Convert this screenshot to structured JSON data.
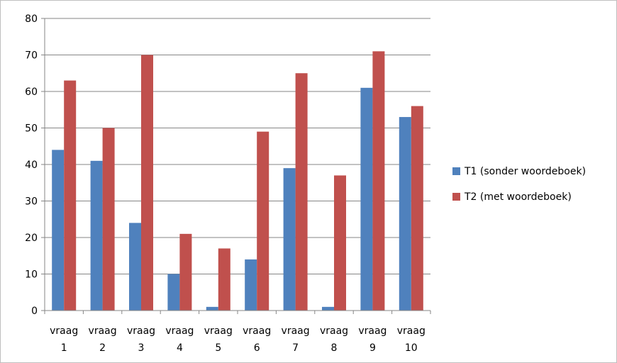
{
  "chart_data": {
    "type": "bar",
    "title": "",
    "xlabel": "",
    "ylabel": "",
    "categories": [
      [
        "vraag",
        "1"
      ],
      [
        "vraag",
        "2"
      ],
      [
        "vraag",
        "3"
      ],
      [
        "vraag",
        "4"
      ],
      [
        "vraag",
        "5"
      ],
      [
        "vraag",
        "6"
      ],
      [
        "vraag",
        "7"
      ],
      [
        "vraag",
        "8"
      ],
      [
        "vraag",
        "9"
      ],
      [
        "vraag",
        "10"
      ]
    ],
    "series": [
      {
        "name": "T1 (sonder woordeboek)",
        "color": "#4F81BD",
        "values": [
          44,
          41,
          24,
          10,
          1,
          14,
          39,
          1,
          61,
          53
        ]
      },
      {
        "name": "T2 (met woordeboek)",
        "color": "#C0504D",
        "values": [
          63,
          50,
          70,
          21,
          17,
          49,
          65,
          37,
          71,
          56
        ]
      }
    ],
    "ylim": [
      0,
      80
    ],
    "yticks": [
      0,
      10,
      20,
      30,
      40,
      50,
      60,
      70,
      80
    ],
    "grid": true,
    "legend_position": "right"
  }
}
